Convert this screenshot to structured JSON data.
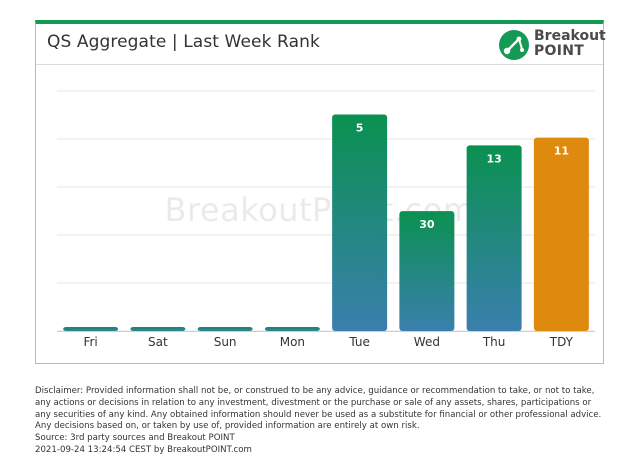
{
  "header": {
    "title": "QS Aggregate | Last Week Rank"
  },
  "logo": {
    "line1": "Breakout",
    "line2": "POINT",
    "icon": "breakoutpoint-logo-icon"
  },
  "watermark": "BreakoutPoint.com",
  "colors": {
    "accent": "#159a55",
    "bar_top": "#0a9150",
    "bar_bottom": "#3a7fae",
    "highlight": "#de8a0e",
    "grid": "#e6e6e6"
  },
  "chart_data": {
    "type": "bar",
    "title": "QS Aggregate | Last Week Rank",
    "categories": [
      "Fri",
      "Sat",
      "Sun",
      "Mon",
      "Tue",
      "Wed",
      "Thu",
      "TDY"
    ],
    "values": [
      null,
      null,
      null,
      null,
      5,
      30,
      13,
      11
    ],
    "data_labels": [
      "",
      "",
      "",
      "",
      "5",
      "30",
      "13",
      "11"
    ],
    "highlight_category": "TDY",
    "inverted_rank_axis": true,
    "grid": true,
    "legend": "none",
    "xlabel": "",
    "ylabel": ""
  },
  "footer": {
    "disclaimer": "Disclaimer: Provided information shall not be, or construed to be any advice, guidance or recommendation to take, or not to take, any actions or decisions in relation to any investment, divestment or the purchase or sale of any assets, shares, participations or any securities of any kind. Any obtained information should never be used as a substitute for financial or other professional advice. Any decisions based on, or taken by use of, provided information are entirely at own risk.",
    "source": "Source: 3rd party sources and Breakout POINT",
    "timestamp": "2021-09-24 13:24:54 CEST by BreakoutPOINT.com"
  }
}
